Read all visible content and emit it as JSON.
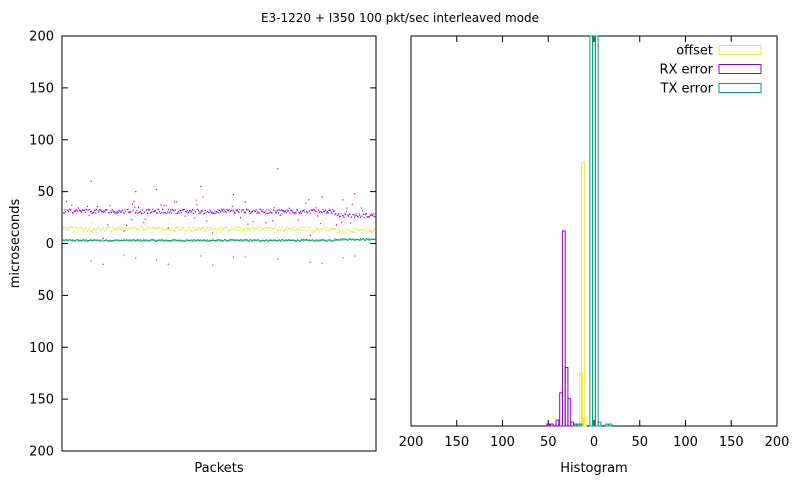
{
  "title": "E3-1220 + I350 100 pkt/sec interleaved mode",
  "colors": {
    "offset": "#f0e442",
    "rx_error": "#9400d3",
    "tx_error": "#009e73",
    "axis": "#000000"
  },
  "chart_data": [
    {
      "type": "scatter",
      "title": "E3-1220 + I350 100 pkt/sec interleaved mode",
      "xlabel": "Packets",
      "ylabel": "microseconds",
      "ylim": [
        200,
        -200
      ],
      "ylim_note": "reversed",
      "y_ticks": [
        "200",
        "150",
        "100",
        "50",
        "0",
        "50",
        "100",
        "150",
        "200"
      ],
      "y_tick_values": [
        200,
        150,
        100,
        50,
        0,
        -50,
        -100,
        -150,
        -200
      ],
      "x_ticks": [],
      "series": [
        {
          "key": "tx_error",
          "color": "#009e73",
          "baseline": 3,
          "baseline_late": 4,
          "outliers": [
            -20,
            -21,
            -19,
            -14,
            -13,
            -12,
            -20,
            -15,
            -17,
            -12,
            -18,
            -11,
            -13,
            -14,
            -16
          ]
        },
        {
          "key": "offset",
          "color": "#f0e442",
          "baseline": 14,
          "baseline_late": 12,
          "outliers": [
            3,
            5,
            22,
            26,
            8,
            28,
            24,
            6,
            20,
            30,
            2
          ]
        },
        {
          "key": "rx_error",
          "color": "#9400d3",
          "baseline": 31,
          "baseline_late": 27,
          "outliers": [
            5,
            10,
            45,
            50,
            40,
            48,
            15,
            72,
            60,
            55,
            8,
            12,
            47,
            42,
            52,
            20
          ]
        }
      ]
    },
    {
      "type": "bar",
      "style": "histogram-steps",
      "xlabel": "Histogram",
      "xlim": [
        -200,
        200
      ],
      "x_ticks": [
        "200",
        "150",
        "100",
        "50",
        "0",
        "50",
        "100",
        "150",
        "200"
      ],
      "x_tick_values": [
        200,
        150,
        100,
        50,
        0,
        -50,
        -100,
        -150,
        -200
      ],
      "ylim": [
        0,
        200
      ],
      "legend_position": "top-right",
      "series": [
        {
          "name": "offset",
          "key": "offset",
          "color": "#f0e442",
          "bins": [
            [
              -17,
              1
            ],
            [
              -14,
              27
            ],
            [
              -12,
              135
            ],
            [
              -10,
              4
            ]
          ]
        },
        {
          "name": "RX error",
          "key": "rx_error",
          "color": "#9400d3",
          "bins": [
            [
              -50,
              1
            ],
            [
              -46,
              1
            ],
            [
              -40,
              3
            ],
            [
              -36,
              17
            ],
            [
              -33,
              100
            ],
            [
              -30,
              30
            ],
            [
              -27,
              14
            ],
            [
              -24,
              2
            ],
            [
              -20,
              1
            ],
            [
              -15,
              1
            ]
          ]
        },
        {
          "name": "TX error",
          "key": "tx_error",
          "color": "#009e73",
          "bins": [
            [
              -21,
              1
            ],
            [
              -15,
              1
            ],
            [
              -3,
              200
            ],
            [
              0,
              200
            ],
            [
              3,
              200
            ],
            [
              6,
              2
            ],
            [
              14,
              1
            ],
            [
              18,
              1
            ]
          ]
        }
      ]
    }
  ]
}
